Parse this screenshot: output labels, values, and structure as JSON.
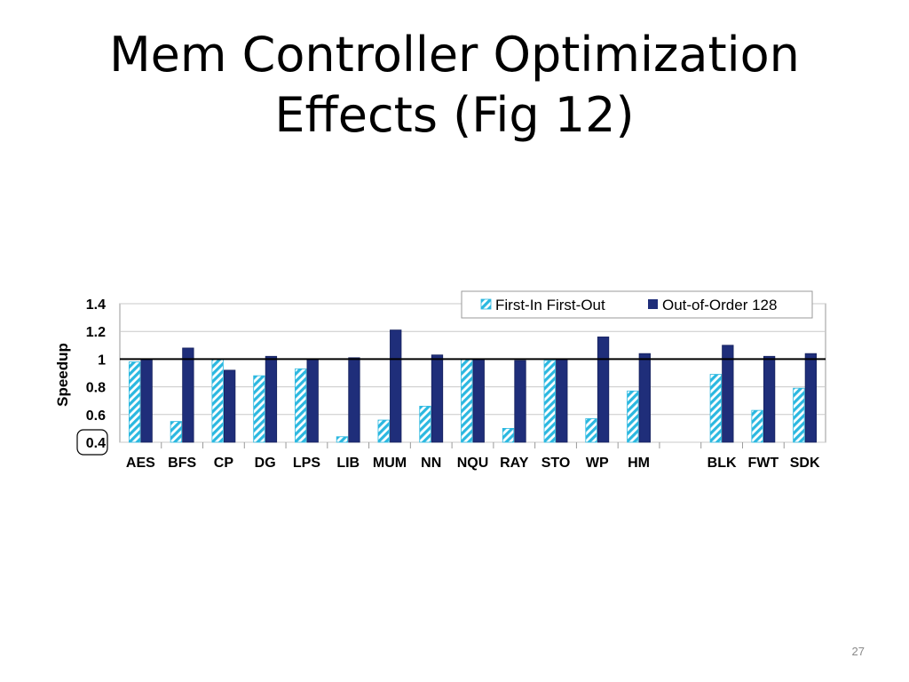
{
  "slide": {
    "title_line1": "Mem Controller Optimization",
    "title_line2": "Effects  (Fig 12)",
    "page_number": "27"
  },
  "chart_data": {
    "type": "bar",
    "title": "",
    "xlabel": "",
    "ylabel": "Speedup",
    "ylim": [
      0.4,
      1.4
    ],
    "yticks": [
      "0.4",
      "0.6",
      "0.8",
      "1",
      "1.2",
      "1.4"
    ],
    "reference_line": 1.0,
    "legend_position": "top-right",
    "grid": "horizontal",
    "categories": [
      "AES",
      "BFS",
      "CP",
      "DG",
      "LPS",
      "LIB",
      "MUM",
      "NN",
      "NQU",
      "RAY",
      "STO",
      "WP",
      "HM",
      "",
      "BLK",
      "FWT",
      "SDK"
    ],
    "series": [
      {
        "name": "First-In First-Out",
        "pattern": "diagonal-hatch",
        "color": "#2bb8e0",
        "values": [
          0.98,
          0.55,
          1.0,
          0.88,
          0.93,
          0.44,
          0.56,
          0.66,
          1.0,
          0.5,
          0.99,
          0.57,
          0.77,
          null,
          0.89,
          0.63,
          0.79
        ]
      },
      {
        "name": "Out-of-Order 128",
        "pattern": "solid",
        "color": "#1f2e7a",
        "values": [
          1.0,
          1.08,
          0.92,
          1.02,
          1.0,
          1.01,
          1.21,
          1.03,
          1.0,
          0.99,
          1.0,
          1.16,
          1.04,
          null,
          1.1,
          1.02,
          1.04
        ]
      }
    ]
  }
}
